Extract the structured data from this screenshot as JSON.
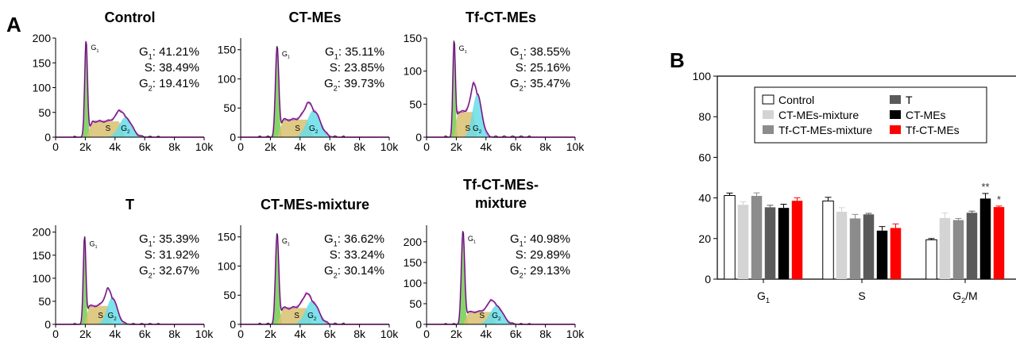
{
  "panel_labels": {
    "a": "A",
    "b": "B"
  },
  "colors": {
    "g1_fill": "#6fcf4f",
    "s_fill": "#d8c070",
    "g2_fill": "#66dde8",
    "envelope": "#e040e0",
    "trace": "#3a2050",
    "axis": "#000000"
  },
  "chart_data": [
    {
      "type": "area",
      "title": "Control",
      "x": [
        0,
        2000,
        4000,
        6000,
        8000,
        10000
      ],
      "tick_labels_x": [
        "0",
        "2k",
        "4k",
        "6k",
        "8k",
        "10k"
      ],
      "xlim": [
        0,
        10000
      ],
      "ylim": [
        0,
        200
      ],
      "yticks": [
        0,
        50,
        100,
        150,
        200
      ],
      "peaks": {
        "g1_x": 2050,
        "g1_h": 195,
        "s_level": 32,
        "g2_x": 4700,
        "g2_h": 40
      },
      "peak_labels": {
        "g1": "G1",
        "s": "S",
        "g2": "G2"
      },
      "annotations": [
        "G1: 41.21%",
        "S: 38.49%",
        "G2: 19.41%"
      ]
    },
    {
      "type": "area",
      "title": "CT-MEs",
      "x": [
        0,
        2000,
        4000,
        6000,
        8000,
        10000
      ],
      "tick_labels_x": [
        "0",
        "2k",
        "4k",
        "6k",
        "8k",
        "10k"
      ],
      "xlim": [
        0,
        10000
      ],
      "ylim": [
        0,
        170
      ],
      "yticks": [
        0,
        50,
        100,
        150
      ],
      "peaks": {
        "g1_x": 2450,
        "g1_h": 155,
        "s_level": 30,
        "g2_x": 4900,
        "g2_h": 46
      },
      "peak_labels": {
        "g1": "G1",
        "s": "S",
        "g2": "G2"
      },
      "annotations": [
        "G1: 35.11%",
        "S: 23.85%",
        "G2: 39.73%"
      ]
    },
    {
      "type": "area",
      "title": "Tf-CT-MEs",
      "x": [
        0,
        2000,
        4000,
        6000,
        8000,
        10000
      ],
      "tick_labels_x": [
        "0",
        "2k",
        "4k",
        "6k",
        "8k",
        "10k"
      ],
      "xlim": [
        0,
        10000
      ],
      "ylim": [
        0,
        150
      ],
      "yticks": [
        0,
        50,
        100,
        150
      ],
      "peaks": {
        "g1_x": 1850,
        "g1_h": 145,
        "s_level": 38,
        "g2_x": 3400,
        "g2_h": 65
      },
      "peak_labels": {
        "g1": "G1",
        "s": "S",
        "g2": "G2"
      },
      "annotations": [
        "G1: 38.55%",
        "S: 25.16%",
        "G2: 35.47%"
      ]
    },
    {
      "type": "area",
      "title": "T",
      "x": [
        0,
        2000,
        4000,
        6000,
        8000,
        10000
      ],
      "tick_labels_x": [
        "0",
        "2k",
        "4k",
        "6k",
        "8k",
        "10k"
      ],
      "xlim": [
        0,
        10000
      ],
      "ylim": [
        0,
        215
      ],
      "yticks": [
        0,
        50,
        100,
        150,
        200
      ],
      "peaks": {
        "g1_x": 1950,
        "g1_h": 190,
        "s_level": 40,
        "g2_x": 3800,
        "g2_h": 58
      },
      "peak_labels": {
        "g1": "G1",
        "s": "S",
        "g2": "G2"
      },
      "annotations": [
        "G1: 35.39%",
        "S: 31.92%",
        "G2: 32.67%"
      ]
    },
    {
      "type": "area",
      "title": "CT-MEs-mixture",
      "x": [
        0,
        2000,
        4000,
        6000,
        8000,
        10000
      ],
      "tick_labels_x": [
        "0",
        "2k",
        "4k",
        "6k",
        "8k",
        "10k"
      ],
      "xlim": [
        0,
        10000
      ],
      "ylim": [
        0,
        170
      ],
      "yticks": [
        0,
        50,
        100,
        150
      ],
      "peaks": {
        "g1_x": 2450,
        "g1_h": 155,
        "s_level": 28,
        "g2_x": 4800,
        "g2_h": 40
      },
      "peak_labels": {
        "g1": "G1",
        "s": "S",
        "g2": "G2"
      },
      "annotations": [
        "G1: 36.62%",
        "S: 33.24%",
        "G2: 30.14%"
      ]
    },
    {
      "type": "area",
      "title": "Tf-CT-MEs-\nmixture",
      "x": [
        0,
        2000,
        4000,
        6000,
        8000,
        10000
      ],
      "tick_labels_x": [
        "0",
        "2k",
        "4k",
        "6k",
        "8k",
        "10k"
      ],
      "xlim": [
        0,
        10000
      ],
      "ylim": [
        0,
        240
      ],
      "yticks": [
        0,
        50,
        100,
        150,
        200
      ],
      "peaks": {
        "g1_x": 2450,
        "g1_h": 225,
        "s_level": 30,
        "g2_x": 4700,
        "g2_h": 45
      },
      "peak_labels": {
        "g1": "G1",
        "s": "S",
        "g2": "G2"
      },
      "annotations": [
        "G1: 40.98%",
        "S: 29.89%",
        "G2: 29.13%"
      ]
    },
    {
      "type": "bar",
      "categories": [
        "G1",
        "S",
        "G2/M"
      ],
      "ylim": [
        0,
        100
      ],
      "yticks": [
        0,
        20,
        40,
        60,
        80,
        100
      ],
      "series": [
        {
          "name": "Control",
          "color": "#ffffff",
          "values": [
            41.2,
            38.5,
            19.4
          ],
          "errors": [
            1.2,
            1.8,
            0.6
          ]
        },
        {
          "name": "CT-MEs-mixture",
          "color": "#d4d4d4",
          "values": [
            36.6,
            33.2,
            30.1
          ],
          "errors": [
            1.5,
            2.0,
            2.5
          ]
        },
        {
          "name": "Tf-CT-MEs-mixture",
          "color": "#8c8c8c",
          "values": [
            41.0,
            29.9,
            29.1
          ],
          "errors": [
            1.5,
            2.0,
            0.8
          ]
        },
        {
          "name": "T",
          "color": "#5a5a5a",
          "values": [
            35.4,
            31.9,
            32.7
          ],
          "errors": [
            1.0,
            0.5,
            0.8
          ]
        },
        {
          "name": "CT-MEs",
          "color": "#000000",
          "values": [
            35.1,
            23.9,
            39.7
          ],
          "errors": [
            1.8,
            2.0,
            2.5
          ]
        },
        {
          "name": "Tf-CT-MEs",
          "color": "#ff0000",
          "values": [
            38.6,
            25.2,
            35.5
          ],
          "errors": [
            1.5,
            2.0,
            0.5
          ]
        }
      ],
      "significance": [
        {
          "category": "G2/M",
          "series": "CT-MEs",
          "mark": "**"
        },
        {
          "category": "G2/M",
          "series": "Tf-CT-MEs",
          "mark": "*"
        }
      ]
    }
  ]
}
